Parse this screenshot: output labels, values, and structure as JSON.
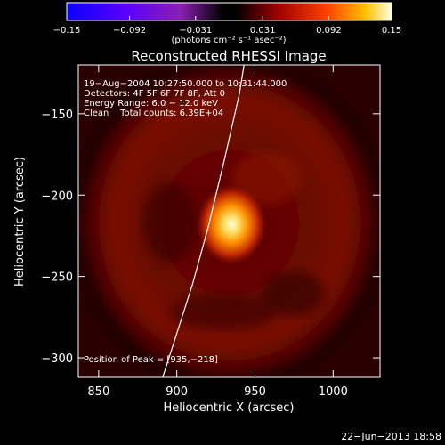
{
  "chart_data": {
    "type": "heatmap",
    "title": "Reconstructed RHESSI Image",
    "xlabel": "Heliocentric X (arcsec)",
    "ylabel": "Heliocentric Y (arcsec)",
    "xlim": [
      837,
      1030
    ],
    "ylim": [
      -312,
      -120
    ],
    "x_ticks": [
      850,
      900,
      950,
      1000
    ],
    "y_ticks": [
      -150,
      -200,
      -250,
      -300
    ],
    "colorbar": {
      "label": "(photons cm⁻² s⁻¹ asec⁻²)",
      "range": [
        -0.15,
        0.15
      ],
      "tick_values": [
        -0.15,
        -0.092,
        -0.031,
        0.031,
        0.092,
        0.15
      ],
      "tick_labels": [
        "−0.15",
        "−0.092",
        "−0.031",
        "0.031",
        "0.092",
        "0.15"
      ],
      "colormap": "blue-purple-black-red-orange-yellow-white"
    },
    "annotations": [
      "19−Aug−2004 10:27:50.000 to 10:31:44.000",
      "Detectors: 4F 5F 6F 7F 8F, Att 0",
      "Energy Range: 6.0 − 12.0 keV",
      "Clean    Total counts: 6.39E+04"
    ],
    "peak": {
      "x": 935,
      "y": -218,
      "label": "Position of Peak = [935,−218]"
    },
    "limb_curve": {
      "x": [
        891,
        900,
        910,
        920,
        930,
        940,
        943
      ],
      "y": [
        -312,
        -285,
        -255,
        -220,
        -180,
        -138,
        -120
      ]
    },
    "timestamp": "22−Jun−2013 18:58"
  }
}
